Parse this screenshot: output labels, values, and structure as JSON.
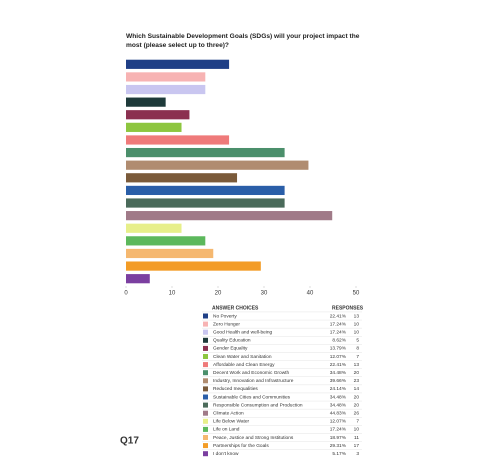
{
  "chart_data": {
    "type": "hbar",
    "title": "Which Sustainable Development Goals (SDGs) will your project impact the most (please select up to three)?",
    "categories": [
      "No Poverty",
      "Zero Hunger",
      "Good Health and well-being",
      "Quality Education",
      "Gender Equality",
      "Clean Water and Sanitation",
      "Affordable and Clean Energy",
      "Decent Work and Economic Growth",
      "Industry, Innovation and Infrastructure",
      "Reduced Inequalities",
      "Sustainable Cities and Communities",
      "Responsible Consumption and Production",
      "Climate Action",
      "Life Below Water",
      "Life on Land",
      "Peace, Justice and Strong Institutions",
      "Partnerships for the Goals",
      "I don't know"
    ],
    "values": [
      22.41,
      17.24,
      17.24,
      8.62,
      13.79,
      12.07,
      22.41,
      34.48,
      39.66,
      24.14,
      34.48,
      34.48,
      44.83,
      12.07,
      17.24,
      18.97,
      29.31,
      5.17
    ],
    "value_labels": [
      "22.41%",
      "17.24%",
      "17.24%",
      "8.62%",
      "13.79%",
      "12.07%",
      "22.41%",
      "34.48%",
      "39.66%",
      "24.14%",
      "34.48%",
      "34.48%",
      "44.83%",
      "12.07%",
      "17.24%",
      "18.97%",
      "29.31%",
      "5.17%"
    ],
    "colors": [
      "#1f3f86",
      "#f7b3b3",
      "#c9c6f0",
      "#1e3a3a",
      "#8b3050",
      "#8dc63f",
      "#ef7a7a",
      "#4b8f6b",
      "#b08c70",
      "#7a5a3a",
      "#2a5ea8",
      "#4a6a5a",
      "#a07a88",
      "#e7ef8a",
      "#5cb85c",
      "#f5b870",
      "#f39c26",
      "#7b3fa0"
    ],
    "xlim": [
      0,
      50
    ],
    "xticks": [
      0,
      10,
      20,
      30,
      40,
      50
    ]
  },
  "table": {
    "headers": [
      "ANSWER CHOICES",
      "RESPONSES"
    ],
    "counts": [
      13,
      10,
      10,
      5,
      8,
      7,
      13,
      20,
      23,
      14,
      20,
      20,
      26,
      7,
      10,
      11,
      17,
      3
    ]
  },
  "question": "Q17"
}
